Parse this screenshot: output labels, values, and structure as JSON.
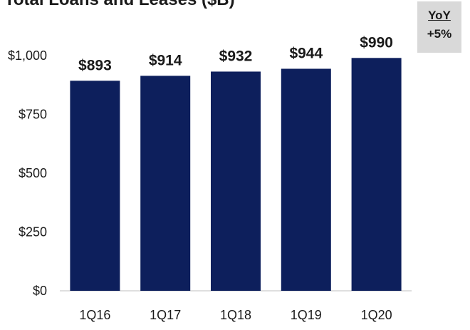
{
  "chart_data": {
    "type": "bar",
    "title": "Total Loans and Leases ($B)",
    "xlabel": "",
    "ylabel": "",
    "categories": [
      "1Q16",
      "1Q17",
      "1Q18",
      "1Q19",
      "1Q20"
    ],
    "values": [
      893,
      914,
      932,
      944,
      990
    ],
    "data_labels": [
      "$893",
      "$914",
      "$932",
      "$944",
      "$990"
    ],
    "ylim": [
      0,
      1000
    ],
    "yticks": [
      0,
      250,
      500,
      750,
      1000
    ],
    "ytick_labels": [
      "$0",
      "$250",
      "$500",
      "$750",
      "$1,000"
    ],
    "grid": false,
    "bar_color": "#0d1f5c"
  },
  "yoy": {
    "label": "YoY",
    "value": "+5%"
  }
}
